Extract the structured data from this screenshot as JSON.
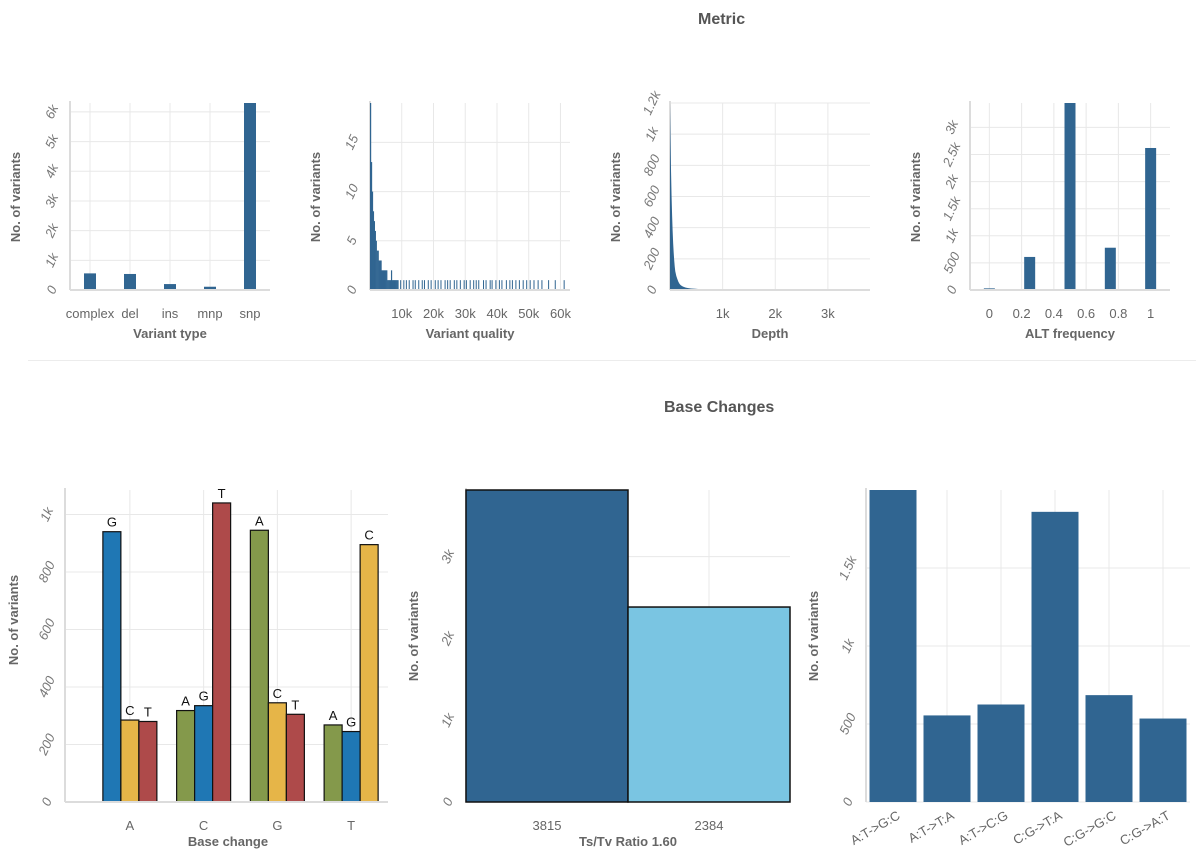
{
  "sections": {
    "metric_title": "Metric",
    "base_changes_title": "Base Changes"
  },
  "colors": {
    "steel_blue": "#306591",
    "light_blue": "#7ac5e2",
    "A": "#84994b",
    "C": "#e6b548",
    "G": "#1f77b4",
    "T": "#ae4a4a"
  },
  "chart_data": [
    {
      "id": "variant_type",
      "type": "bar",
      "xlabel": "Variant type",
      "ylabel": "No. of variants",
      "categories": [
        "complex",
        "del",
        "ins",
        "mnp",
        "snp"
      ],
      "values": [
        560,
        540,
        200,
        110,
        6300
      ],
      "ylim": [
        0,
        6300
      ],
      "yticks": [
        0,
        1000,
        2000,
        3000,
        4000,
        5000,
        6000
      ],
      "ytick_labels": [
        "0",
        "1k",
        "2k",
        "3k",
        "4k",
        "5k",
        "6k"
      ]
    },
    {
      "id": "variant_quality",
      "type": "bar",
      "xlabel": "Variant quality",
      "ylabel": "No. of variants",
      "xlim": [
        0,
        63000
      ],
      "xticks": [
        10000,
        20000,
        30000,
        40000,
        50000,
        60000
      ],
      "xtick_labels": [
        "10k",
        "20k",
        "30k",
        "40k",
        "50k",
        "60k"
      ],
      "ylim": [
        0,
        19
      ],
      "yticks": [
        0,
        5,
        10,
        15
      ],
      "ytick_labels": [
        "0",
        "5",
        "10",
        "15"
      ],
      "head_x": [
        0,
        300,
        600,
        900,
        1200,
        1500,
        1800,
        2100,
        2400,
        2700,
        3000,
        3300,
        3600,
        3900,
        4200,
        4500,
        4800,
        5100,
        5400,
        5700,
        6000,
        6300,
        6600,
        6900,
        7200,
        7500,
        7800,
        8100,
        8400
      ],
      "head_values": [
        19,
        13,
        10,
        8,
        7,
        6,
        5,
        4,
        4,
        3,
        3,
        3,
        2,
        2,
        2,
        2,
        2,
        2,
        1,
        1,
        1,
        1,
        2,
        1,
        1,
        1,
        1,
        1,
        1
      ],
      "tail_x": [
        8700,
        9500,
        10500,
        11300,
        12200,
        13400,
        14100,
        15200,
        16300,
        17000,
        18200,
        19100,
        20400,
        21300,
        22200,
        23500,
        24300,
        25100,
        26400,
        27200,
        28300,
        29500,
        30200,
        31400,
        32500,
        33300,
        34100,
        35600,
        36400,
        37700,
        38300,
        39500,
        40600,
        41400,
        42800,
        43900,
        44700,
        45800,
        46900,
        48100,
        49200,
        50300,
        51500,
        52800,
        54000,
        56100,
        58200,
        61000
      ],
      "tail_value": 1
    },
    {
      "id": "depth",
      "type": "bar",
      "xlabel": "Depth",
      "ylabel": "No. of variants",
      "xlim": [
        0,
        3800
      ],
      "xticks": [
        1000,
        2000,
        3000
      ],
      "xtick_labels": [
        "1k",
        "2k",
        "3k"
      ],
      "ylim": [
        0,
        1200
      ],
      "yticks": [
        0,
        200,
        400,
        600,
        800,
        1000,
        1200
      ],
      "ytick_labels": [
        "0",
        "200",
        "400",
        "600",
        "800",
        "1k",
        "1.2k"
      ],
      "x": [
        0,
        10,
        20,
        30,
        40,
        50,
        60,
        70,
        80,
        90,
        100,
        120,
        140,
        160,
        180,
        200,
        230,
        260,
        300,
        350,
        400,
        480,
        560,
        650,
        750,
        900
      ],
      "values": [
        1200,
        960,
        760,
        600,
        480,
        380,
        300,
        240,
        190,
        150,
        120,
        90,
        70,
        52,
        40,
        32,
        25,
        20,
        15,
        12,
        10,
        8,
        6,
        5,
        4,
        3
      ]
    },
    {
      "id": "alt_frequency",
      "type": "bar",
      "xlabel": "ALT frequency",
      "ylabel": "No. of variants",
      "xlim": [
        -0.12,
        1.12
      ],
      "xticks": [
        0,
        0.2,
        0.4,
        0.6,
        0.8,
        1
      ],
      "xtick_labels": [
        "0",
        "0.2",
        "0.4",
        "0.6",
        "0.8",
        "1"
      ],
      "x": [
        0,
        0.25,
        0.5,
        0.75,
        1
      ],
      "values": [
        30,
        610,
        3450,
        780,
        2620
      ],
      "ylim": [
        0,
        3450
      ],
      "yticks": [
        0,
        500,
        1000,
        1500,
        2000,
        2500,
        3000
      ],
      "ytick_labels": [
        "0",
        "500",
        "1k",
        "1.5k",
        "2k",
        "2.5k",
        "3k"
      ]
    },
    {
      "id": "base_change",
      "type": "bar",
      "xlabel": "Base change",
      "ylabel": "No. of variants",
      "categories": [
        "A",
        "C",
        "G",
        "T"
      ],
      "groups": [
        {
          "bars": [
            {
              "label": "G",
              "value": 940
            },
            {
              "label": "C",
              "value": 285
            },
            {
              "label": "T",
              "value": 280
            }
          ]
        },
        {
          "bars": [
            {
              "label": "A",
              "value": 318
            },
            {
              "label": "G",
              "value": 335
            },
            {
              "label": "T",
              "value": 1040
            }
          ]
        },
        {
          "bars": [
            {
              "label": "A",
              "value": 945
            },
            {
              "label": "C",
              "value": 345
            },
            {
              "label": "T",
              "value": 305
            }
          ]
        },
        {
          "bars": [
            {
              "label": "A",
              "value": 268
            },
            {
              "label": "G",
              "value": 245
            },
            {
              "label": "C",
              "value": 895
            }
          ]
        }
      ],
      "ylim": [
        0,
        1085
      ],
      "yticks": [
        0,
        200,
        400,
        600,
        800,
        1000
      ],
      "ytick_labels": [
        "0",
        "200",
        "400",
        "600",
        "800",
        "1k"
      ]
    },
    {
      "id": "ts_tv",
      "type": "bar",
      "xlabel": "Ts/Tv Ratio 1.60",
      "ylabel": "No. of variants",
      "categories": [
        "3815",
        "2384"
      ],
      "values": [
        3815,
        2384
      ],
      "ylim": [
        0,
        3815
      ],
      "yticks": [
        0,
        1000,
        2000,
        3000
      ],
      "ytick_labels": [
        "0",
        "1k",
        "2k",
        "3k"
      ]
    },
    {
      "id": "substitution_type",
      "type": "bar",
      "xlabel": "",
      "ylabel": "No. of variants",
      "categories": [
        "A:T->G:C",
        "A:T->T:A",
        "A:T->C:G",
        "C:G->T:A",
        "C:G->G:C",
        "C:G->A:T"
      ],
      "values": [
        2000,
        555,
        625,
        1860,
        685,
        535
      ],
      "ylim": [
        0,
        2000
      ],
      "yticks": [
        0,
        500,
        1000,
        1500
      ],
      "ytick_labels": [
        "0",
        "500",
        "1k",
        "1.5k"
      ]
    }
  ]
}
